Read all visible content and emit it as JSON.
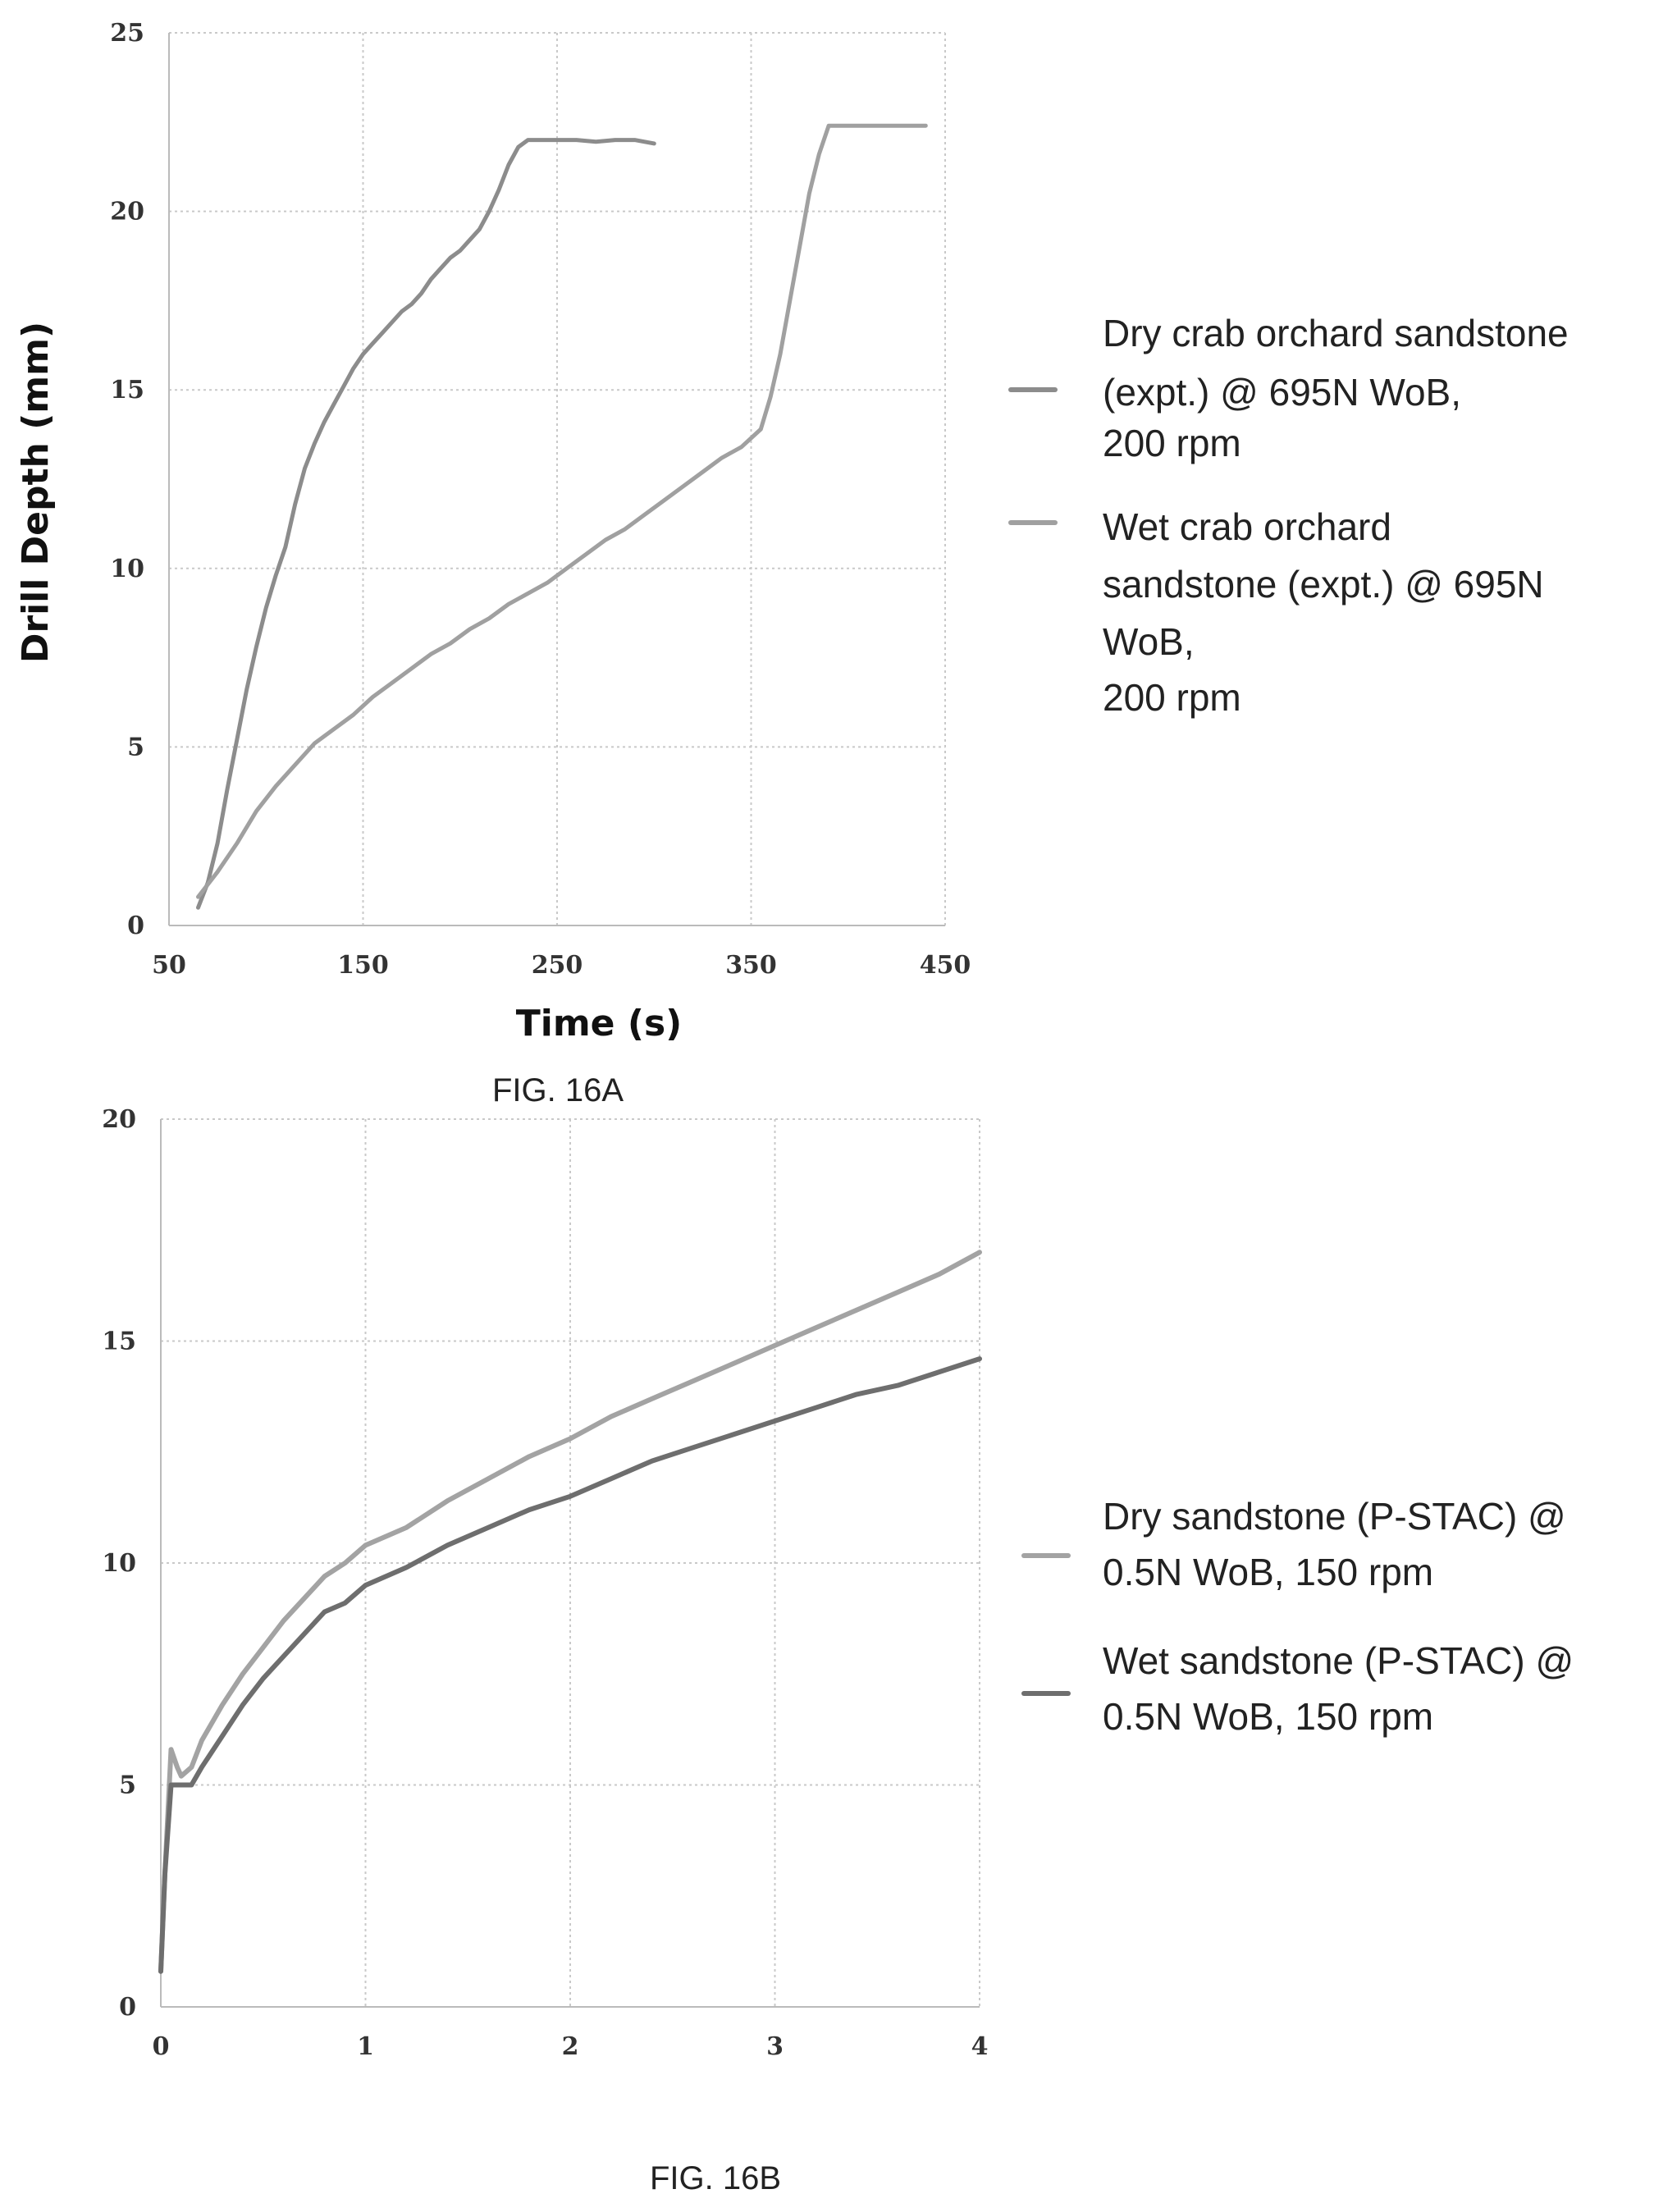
{
  "chart_data": [
    {
      "type": "line",
      "title": "",
      "xlabel": "Time (s)",
      "ylabel": "Drill Depth (mm)",
      "caption": "FIG. 16A",
      "xlim": [
        50,
        450
      ],
      "ylim": [
        0,
        25
      ],
      "x_ticks": [
        "50",
        "150",
        "250",
        "350",
        "450"
      ],
      "y_ticks": [
        "0",
        "5",
        "10",
        "15",
        "20",
        "25"
      ],
      "grid": true,
      "legend_position": "right",
      "series": [
        {
          "name": "Dry crab orchard sandstone (expt.) @ 695N WoB, 200 rpm",
          "legend_lines": [
            "Dry crab orchard sandstone",
            "(expt.) @ 695N WoB,",
            "200 rpm"
          ],
          "color": "#8c8c8c",
          "x": [
            65,
            70,
            75,
            80,
            85,
            90,
            95,
            100,
            105,
            110,
            115,
            120,
            125,
            130,
            135,
            140,
            145,
            150,
            155,
            160,
            165,
            170,
            175,
            180,
            185,
            190,
            195,
            200,
            205,
            210,
            215,
            220,
            225,
            230,
            235,
            240,
            250,
            260,
            270,
            280,
            290,
            300
          ],
          "y": [
            0.5,
            1.2,
            2.3,
            3.8,
            5.2,
            6.6,
            7.8,
            8.9,
            9.8,
            10.6,
            11.8,
            12.8,
            13.5,
            14.1,
            14.6,
            15.1,
            15.6,
            16.0,
            16.3,
            16.6,
            16.9,
            17.2,
            17.4,
            17.7,
            18.1,
            18.4,
            18.7,
            18.9,
            19.2,
            19.5,
            20.0,
            20.6,
            21.3,
            21.8,
            22.0,
            22.0,
            22.0,
            22.0,
            21.95,
            22.0,
            22.0,
            21.9
          ]
        },
        {
          "name": "Wet crab orchard sandstone (expt.) @ 695N WoB, 200 rpm",
          "legend_lines": [
            "Wet crab orchard",
            "sandstone (expt.) @ 695N",
            "WoB,",
            "200 rpm"
          ],
          "color": "#a0a0a0",
          "x": [
            65,
            75,
            85,
            95,
            105,
            115,
            125,
            135,
            145,
            155,
            165,
            175,
            185,
            195,
            205,
            215,
            225,
            235,
            245,
            255,
            265,
            275,
            285,
            295,
            305,
            315,
            325,
            335,
            345,
            355,
            360,
            365,
            370,
            375,
            380,
            385,
            390,
            395,
            400,
            410,
            420,
            430,
            440
          ],
          "y": [
            0.8,
            1.5,
            2.3,
            3.2,
            3.9,
            4.5,
            5.1,
            5.5,
            5.9,
            6.4,
            6.8,
            7.2,
            7.6,
            7.9,
            8.3,
            8.6,
            9.0,
            9.3,
            9.6,
            10.0,
            10.4,
            10.8,
            11.1,
            11.5,
            11.9,
            12.3,
            12.7,
            13.1,
            13.4,
            13.9,
            14.8,
            16.0,
            17.5,
            19.0,
            20.5,
            21.6,
            22.4,
            22.4,
            22.4,
            22.4,
            22.4,
            22.4,
            22.4
          ]
        }
      ]
    },
    {
      "type": "line",
      "title": "",
      "xlabel": "",
      "ylabel": "",
      "caption": "FIG. 16B",
      "xlim": [
        0,
        4
      ],
      "ylim": [
        0,
        20
      ],
      "x_ticks": [
        "0",
        "1",
        "2",
        "3",
        "4"
      ],
      "y_ticks": [
        "0",
        "5",
        "10",
        "15",
        "20"
      ],
      "grid": true,
      "legend_position": "right",
      "series": [
        {
          "name": "Dry sandstone (P-STAC) @ 0.5N WoB, 150 rpm",
          "legend_lines": [
            "Dry sandstone (P-STAC) @",
            "0.5N WoB, 150 rpm"
          ],
          "color": "#a3a3a3",
          "x": [
            0,
            0.02,
            0.05,
            0.08,
            0.1,
            0.15,
            0.2,
            0.3,
            0.4,
            0.5,
            0.6,
            0.7,
            0.8,
            0.9,
            1.0,
            1.2,
            1.4,
            1.6,
            1.8,
            2.0,
            2.2,
            2.4,
            2.6,
            2.8,
            3.0,
            3.2,
            3.4,
            3.6,
            3.8,
            4.0
          ],
          "y": [
            0.8,
            3.0,
            5.8,
            5.4,
            5.2,
            5.4,
            6.0,
            6.8,
            7.5,
            8.1,
            8.7,
            9.2,
            9.7,
            10.0,
            10.4,
            10.8,
            11.4,
            11.9,
            12.4,
            12.8,
            13.3,
            13.7,
            14.1,
            14.5,
            14.9,
            15.3,
            15.7,
            16.1,
            16.5,
            17.0
          ]
        },
        {
          "name": "Wet sandstone (P-STAC) @ 0.5N WoB, 150 rpm",
          "legend_lines": [
            "Wet sandstone (P-STAC) @",
            "0.5N WoB, 150 rpm"
          ],
          "color": "#6e6e6e",
          "x": [
            0,
            0.02,
            0.05,
            0.08,
            0.1,
            0.15,
            0.2,
            0.3,
            0.4,
            0.5,
            0.6,
            0.7,
            0.8,
            0.9,
            1.0,
            1.2,
            1.4,
            1.6,
            1.8,
            2.0,
            2.2,
            2.4,
            2.6,
            2.8,
            3.0,
            3.2,
            3.4,
            3.6,
            3.8,
            4.0
          ],
          "y": [
            0.8,
            3.0,
            5.0,
            5.0,
            5.0,
            5.0,
            5.4,
            6.1,
            6.8,
            7.4,
            7.9,
            8.4,
            8.9,
            9.1,
            9.5,
            9.9,
            10.4,
            10.8,
            11.2,
            11.5,
            11.9,
            12.3,
            12.6,
            12.9,
            13.2,
            13.5,
            13.8,
            14.0,
            14.3,
            14.6
          ]
        }
      ]
    }
  ]
}
